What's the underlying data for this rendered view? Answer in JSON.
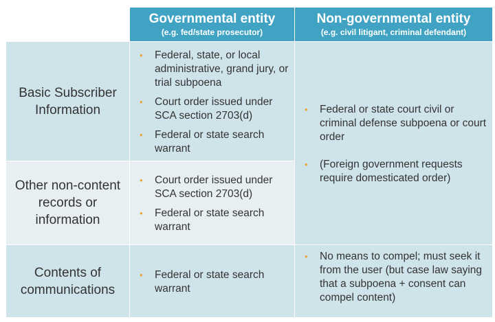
{
  "header": {
    "gov_title": "Governmental entity",
    "gov_sub": "(e.g. fed/state prosecutor)",
    "nongov_title": "Non-governmental entity",
    "nongov_sub": "(e.g. civil litigant, criminal defendant)"
  },
  "rows": [
    {
      "label": "Basic Subscriber Information",
      "gov": [
        "Federal, state, or local administrative, grand jury, or trial subpoena",
        "Court order issued under SCA section 2703(d)",
        "Federal or state search warrant"
      ]
    },
    {
      "label": "Other non-content records or information",
      "gov": [
        "Court order issued under SCA section 2703(d)",
        "Federal or state search warrant"
      ]
    },
    {
      "label": "Contents of communications",
      "gov": [
        "Federal or state search warrant"
      ],
      "nongov": [
        "No means to compel; must seek it from the user (but case law saying that a subpoena + consent can compel content)"
      ]
    }
  ],
  "nongov_shared": [
    "Federal or state court civil or criminal defense subpoena or court order",
    "(Foreign government requests require domesticated order)"
  ],
  "colors": {
    "header": "#40a3c4",
    "cell_blue": "#cfe3ea",
    "cell_light": "#e8eff2",
    "bullet": "#e9a43a"
  },
  "bullet_char": "•"
}
